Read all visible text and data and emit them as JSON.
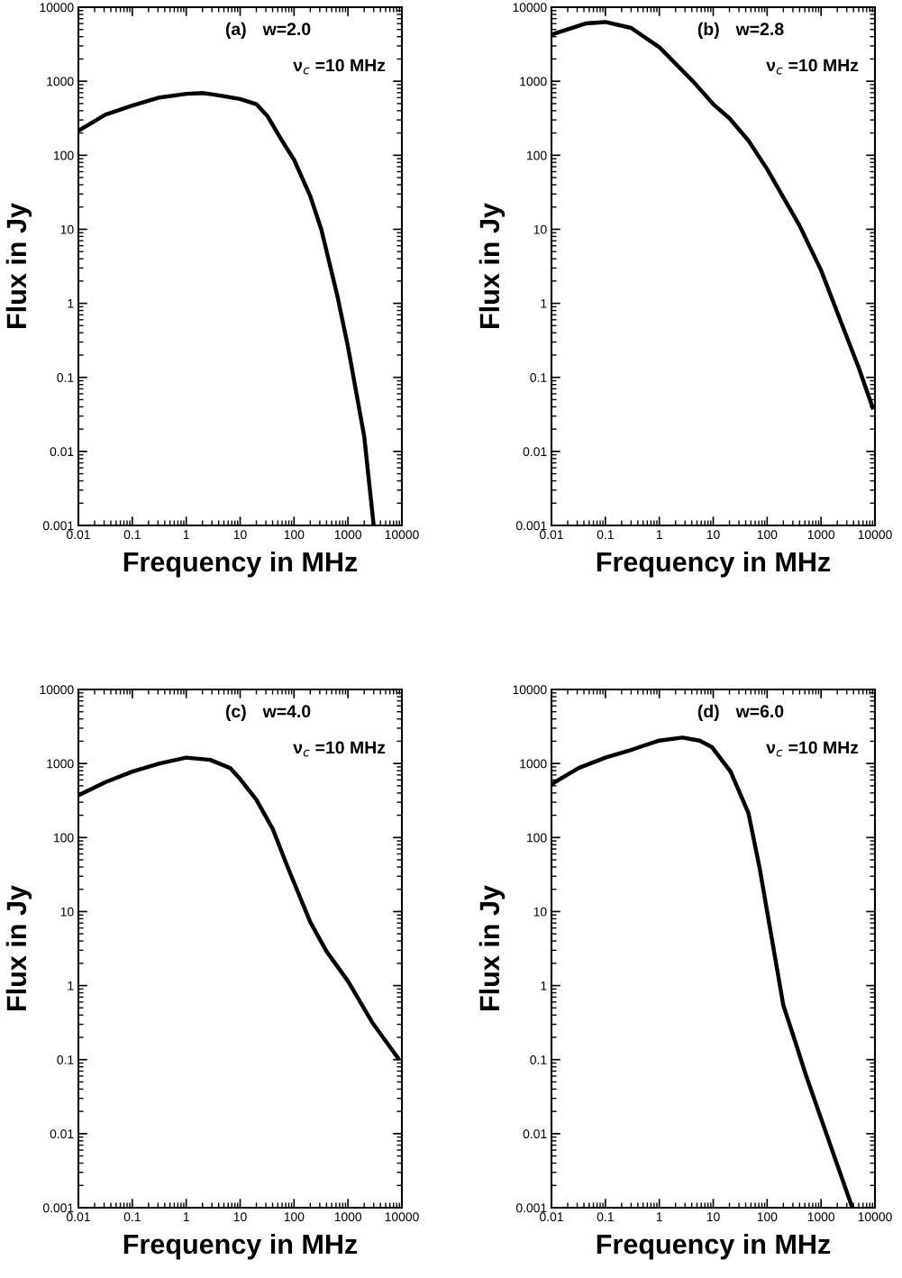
{
  "chart_data": [
    {
      "type": "line",
      "xlabel": "Frequency in MHz",
      "ylabel": "Flux in Jy",
      "log": "xy",
      "xlim": [
        0.01,
        10000
      ],
      "ylim": [
        0.001,
        10000
      ],
      "xticks": [
        0.01,
        0.1,
        1,
        10,
        100,
        1000,
        10000
      ],
      "yticks": [
        0.001,
        0.01,
        0.1,
        1,
        10,
        100,
        1000,
        10000
      ],
      "marker": "none",
      "line_style": "solid",
      "annotations": [
        "(a)",
        "w=2.0",
        "ν$_{c}$ =10 MHz"
      ],
      "series": [
        {
          "color": "#000000",
          "x": [
            0.01,
            0.032,
            0.1,
            0.32,
            1,
            2,
            3.2,
            10,
            20,
            32,
            63,
            100,
            200,
            320,
            630,
            1000,
            2000,
            3000
          ],
          "values": [
            214,
            355,
            468,
            603,
            676,
            692,
            661,
            575,
            490,
            339,
            148,
            87,
            28,
            10,
            1.3,
            0.26,
            0.016,
            0.001
          ]
        }
      ]
    },
    {
      "type": "line",
      "xlabel": "Frequency in MHz",
      "ylabel": "Flux in Jy",
      "log": "xy",
      "xlim": [
        0.01,
        10000
      ],
      "ylim": [
        0.001,
        10000
      ],
      "xticks": [
        0.01,
        0.1,
        1,
        10,
        100,
        1000,
        10000
      ],
      "yticks": [
        0.001,
        0.01,
        0.1,
        1,
        10,
        100,
        1000,
        10000
      ],
      "marker": "none",
      "line_style": "solid",
      "annotations": [
        "(b)",
        "w=2.8",
        "ν$_{c}$ =10 MHz"
      ],
      "series": [
        {
          "color": "#000000",
          "x": [
            0.01,
            0.043,
            0.1,
            0.3,
            1,
            4.2,
            10,
            20,
            45,
            100,
            400,
            1000,
            2800,
            5000,
            9300
          ],
          "values": [
            4270,
            6030,
            6310,
            5250,
            2880,
            1000,
            490,
            316,
            158,
            65,
            11.2,
            2.8,
            0.4,
            0.135,
            0.037
          ]
        }
      ]
    },
    {
      "type": "line",
      "xlabel": "Frequency in MHz",
      "ylabel": "Flux in Jy",
      "log": "xy",
      "xlim": [
        0.01,
        10000
      ],
      "ylim": [
        0.001,
        10000
      ],
      "xticks": [
        0.01,
        0.1,
        1,
        10,
        100,
        1000,
        10000
      ],
      "yticks": [
        0.001,
        0.01,
        0.1,
        1,
        10,
        100,
        1000,
        10000
      ],
      "marker": "none",
      "line_style": "solid",
      "annotations": [
        "(c)",
        "w=4.0",
        "ν$_{c}$ =10 MHz"
      ],
      "series": [
        {
          "color": "#000000",
          "x": [
            0.01,
            0.032,
            0.1,
            0.32,
            1,
            2.8,
            6.5,
            10,
            20,
            40,
            76,
            200,
            400,
            1000,
            2800,
            8900
          ],
          "values": [
            372,
            562,
            776,
            1000,
            1200,
            1120,
            870,
            617,
            324,
            132,
            40,
            7.2,
            2.9,
            1.15,
            0.32,
            0.1
          ]
        }
      ]
    },
    {
      "type": "line",
      "xlabel": "Frequency in MHz",
      "ylabel": "Flux in Jy",
      "log": "xy",
      "xlim": [
        0.01,
        10000
      ],
      "ylim": [
        0.001,
        10000
      ],
      "xticks": [
        0.01,
        0.1,
        1,
        10,
        100,
        1000,
        10000
      ],
      "yticks": [
        0.001,
        0.01,
        0.1,
        1,
        10,
        100,
        1000,
        10000
      ],
      "marker": "none",
      "line_style": "solid",
      "annotations": [
        "(d)",
        "w=6.0",
        "ν$_{c}$ =10 MHz"
      ],
      "series": [
        {
          "color": "#000000",
          "x": [
            0.01,
            0.032,
            0.1,
            0.32,
            1,
            2.7,
            5.6,
            9.5,
            21,
            45,
            72,
            100,
            200,
            320,
            520,
            1000,
            3800
          ],
          "values": [
            525,
            870,
            1200,
            1550,
            2040,
            2240,
            2040,
            1660,
            776,
            214,
            40,
            10,
            0.54,
            0.19,
            0.063,
            0.016,
            0.001
          ]
        }
      ]
    }
  ]
}
